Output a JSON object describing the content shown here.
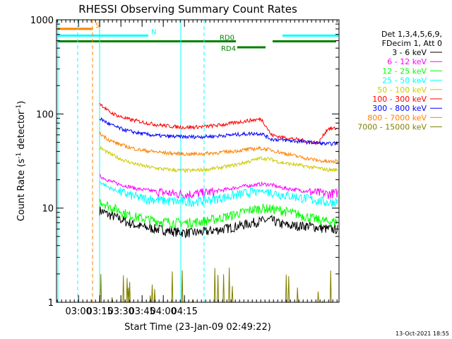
{
  "chart_data": {
    "type": "line",
    "title": "RHESSI Observing Summary Count Rates",
    "xlabel": "Start Time (23-Jan-09 02:49:22)",
    "ylabel_parts": [
      "Count Rate (s",
      "-1",
      " detector",
      "-1",
      ")"
    ],
    "y_scale": "log",
    "ylim": [
      1,
      1000
    ],
    "xlim_min": [
      -5,
      195
    ],
    "y_ticks": [
      {
        "value": 1,
        "label": "1"
      },
      {
        "value": 10,
        "label": "10"
      },
      {
        "value": 100,
        "label": "100"
      },
      {
        "value": 1000,
        "label": "1000"
      }
    ],
    "x_ticks": [
      {
        "value": 10.6,
        "label": "03:00"
      },
      {
        "value": 25.6,
        "label": "03:15"
      },
      {
        "value": 40.6,
        "label": "03:30"
      },
      {
        "value": 55.6,
        "label": "03:45"
      },
      {
        "value": 70.6,
        "label": "04:00"
      },
      {
        "value": 85.6,
        "label": "04:15"
      }
    ],
    "legend_header": [
      "Det 1,3,4,5,6,9,",
      "FDecim 1, Att 0"
    ],
    "series": [
      {
        "name": "3 - 6 keV",
        "color": "#000000",
        "start": 25.5,
        "values": [
          9.5,
          8.5,
          7.8,
          7.0,
          6.5,
          6.2,
          6.0,
          5.8,
          5.6,
          5.5,
          5.5,
          5.6,
          5.8,
          6.0,
          6.3,
          6.6,
          7.0,
          7.3,
          7.5,
          6.8,
          6.5,
          6.5,
          6.5,
          6.2,
          6.0,
          6.0
        ]
      },
      {
        "name": "6 - 12 keV",
        "color": "#ff00ff",
        "start": 25.5,
        "values": [
          22,
          19.5,
          18,
          17,
          16,
          15.5,
          15,
          14.5,
          14.2,
          14,
          14.2,
          14.5,
          15,
          15.6,
          16.3,
          17,
          17.5,
          18,
          17.8,
          16.5,
          16,
          15.5,
          15,
          14.5,
          14.2,
          14.5
        ]
      },
      {
        "name": "12 - 25 keV",
        "color": "#00ff00",
        "start": 25.5,
        "values": [
          12,
          10.5,
          9.5,
          8.5,
          8,
          7.6,
          7.3,
          7.2,
          7,
          7,
          7.1,
          7.3,
          7.6,
          8,
          8.5,
          9,
          9.6,
          10,
          9.8,
          9.5,
          9,
          8.5,
          8,
          7.5,
          7.2,
          7.2
        ]
      },
      {
        "name": "25 - 50 keV",
        "color": "#00ffff",
        "start": 25.5,
        "values": [
          19,
          16.5,
          15,
          14,
          13,
          12.6,
          12.3,
          12,
          11.8,
          11.7,
          11.8,
          12,
          12.5,
          13,
          13.6,
          14.2,
          14.8,
          15.2,
          14.8,
          14,
          13.5,
          13,
          12.5,
          12,
          11.5,
          11.8
        ]
      },
      {
        "name": "50 - 100 keV",
        "color": "#cccc00",
        "start": 25.5,
        "values": [
          44,
          38,
          34,
          31,
          29,
          27.5,
          26.5,
          25.8,
          25.3,
          25,
          25.2,
          25.6,
          26.3,
          27.3,
          28.5,
          30,
          32,
          34,
          33,
          30.5,
          29.5,
          28.5,
          27.5,
          26.5,
          25.5,
          25.5
        ]
      },
      {
        "name": "100 - 300 keV",
        "color": "#ff0000",
        "start": 25.5,
        "values": [
          130,
          105,
          95,
          88,
          84,
          80,
          77,
          75,
          73,
          72,
          72.5,
          73.5,
          75,
          77,
          80,
          83,
          86,
          88,
          60,
          57,
          55,
          53,
          51,
          49,
          70,
          70
        ]
      },
      {
        "name": "300 - 800 keV",
        "color": "#0000ff",
        "start": 25.5,
        "values": [
          90,
          78,
          71,
          66,
          63,
          60.5,
          59,
          58,
          57.5,
          57,
          57.2,
          57.5,
          58,
          59,
          60,
          61,
          62,
          62,
          54,
          53,
          52,
          51,
          50,
          49,
          48,
          49
        ]
      },
      {
        "name": "800 - 7000 keV",
        "color": "#ff8000",
        "start": 25.5,
        "values": [
          62,
          53,
          48,
          44.5,
          42,
          40.5,
          39.5,
          38.5,
          38,
          37.5,
          37.5,
          38,
          38.5,
          39.3,
          40.2,
          41.3,
          42.5,
          43,
          41.5,
          39,
          37,
          35,
          33.5,
          32,
          31,
          31.5
        ]
      },
      {
        "name": "7000 - 15000 keV",
        "color": "#808000",
        "start": 25.5,
        "values": [
          1.7,
          1.3,
          1,
          1,
          1,
          1,
          1,
          1,
          1,
          1,
          1,
          1,
          1,
          1,
          1,
          1,
          1.3,
          1,
          1,
          1,
          1,
          1,
          1,
          1,
          1,
          1
        ]
      }
    ],
    "mode_bars": [
      {
        "label": "S",
        "color": "#ff8000",
        "y": 800,
        "start": -5,
        "end": 20.5
      },
      {
        "label": "N",
        "color": "#00ffff",
        "y": 680,
        "start": -5,
        "end": 60
      },
      {
        "label": "",
        "color": "#00ffff",
        "y": 680,
        "start": 155,
        "end": 195
      },
      {
        "label": "RD0",
        "color": "#008000",
        "y": 590,
        "start": -5,
        "end": 122
      },
      {
        "label": "",
        "color": "#008000",
        "y": 590,
        "start": 148,
        "end": 193
      },
      {
        "label": "RD4",
        "color": "#008000",
        "y": 510,
        "start": 123,
        "end": 143
      }
    ],
    "vertical_markers": [
      {
        "x": -4,
        "color": "#00ffff",
        "style": "solid"
      },
      {
        "x": 10,
        "color": "#00ffff",
        "style": "dashed"
      },
      {
        "x": 20.5,
        "color": "#ff8000",
        "style": "dashed"
      },
      {
        "x": 25.5,
        "color": "#00ffff",
        "style": "solid"
      },
      {
        "x": 83,
        "color": "#00ffff",
        "style": "solid"
      },
      {
        "x": 99.5,
        "color": "#00ffff",
        "style": "dashed"
      }
    ]
  },
  "footer": {
    "timestamp": "13-Oct-2021 18:55"
  }
}
